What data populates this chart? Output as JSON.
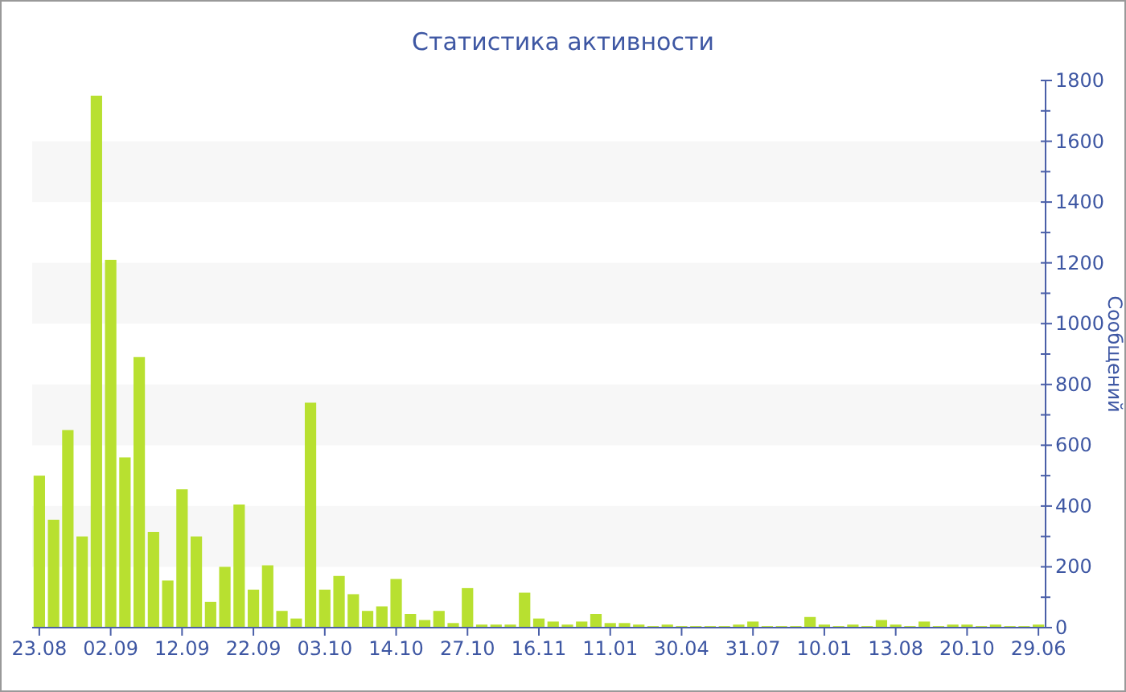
{
  "chart_data": {
    "type": "bar",
    "title": "Статистика активности",
    "ylabel": "Сообщений",
    "categories": [
      "23.08",
      null,
      null,
      null,
      null,
      "02.09",
      null,
      null,
      null,
      null,
      "12.09",
      null,
      null,
      null,
      null,
      "22.09",
      null,
      null,
      null,
      null,
      "03.10",
      null,
      null,
      null,
      null,
      "14.10",
      null,
      null,
      null,
      null,
      "27.10",
      null,
      null,
      null,
      null,
      "16.11",
      null,
      null,
      null,
      null,
      "11.01",
      null,
      null,
      null,
      null,
      "30.04",
      null,
      null,
      null,
      null,
      "31.07",
      null,
      null,
      null,
      null,
      "10.01",
      null,
      null,
      null,
      null,
      "13.08",
      null,
      null,
      null,
      null,
      "20.10",
      null,
      null,
      null,
      null,
      "29.06"
    ],
    "values": [
      500,
      355,
      650,
      300,
      1750,
      1210,
      560,
      890,
      315,
      155,
      455,
      300,
      85,
      200,
      405,
      125,
      205,
      55,
      30,
      740,
      125,
      170,
      110,
      55,
      70,
      160,
      45,
      25,
      55,
      15,
      130,
      10,
      10,
      10,
      115,
      30,
      20,
      10,
      20,
      45,
      15,
      15,
      10,
      5,
      10,
      5,
      5,
      5,
      5,
      10,
      20,
      5,
      5,
      5,
      35,
      10,
      5,
      10,
      5,
      25,
      10,
      5,
      20,
      5,
      10,
      10,
      5,
      10,
      5,
      5,
      10
    ],
    "color": "#b8e030",
    "ylim": [
      0,
      1800
    ],
    "yticks": [
      0,
      {
        "value": 100,
        "label": null
      },
      200,
      {
        "value": 300,
        "label": null
      },
      400,
      {
        "value": 500,
        "label": null
      },
      600,
      {
        "value": 700,
        "label": null
      },
      800,
      {
        "value": 900,
        "label": null
      },
      1000,
      {
        "value": 1100,
        "label": null
      },
      1200,
      {
        "value": 1300,
        "label": null
      },
      1400,
      {
        "value": 1500,
        "label": null
      },
      1600,
      {
        "value": 1700,
        "label": null
      },
      1800
    ],
    "bands": [
      {
        "axis": "y",
        "from": 200,
        "to": 400,
        "color": "#f7f7f7"
      },
      {
        "axis": "y",
        "from": 600,
        "to": 800,
        "color": "#f7f7f7"
      },
      {
        "axis": "y",
        "from": 1000,
        "to": 1200,
        "color": "#f7f7f7"
      },
      {
        "axis": "y",
        "from": 1400,
        "to": 1600,
        "color": "#f7f7f7"
      }
    ]
  }
}
